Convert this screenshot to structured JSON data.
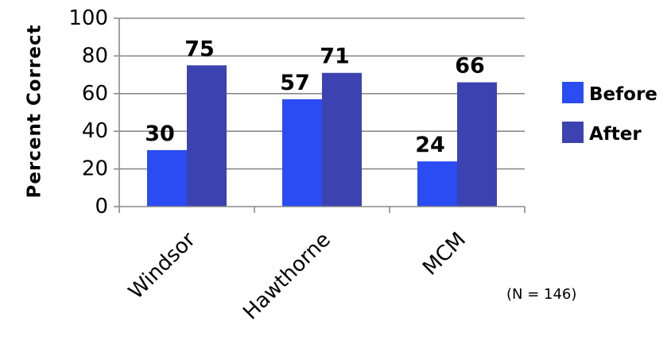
{
  "chart_data": {
    "type": "bar",
    "categories": [
      "Windsor",
      "Hawthorne",
      "MCM"
    ],
    "series": [
      {
        "name": "Before",
        "values": [
          30,
          57,
          24
        ],
        "color": "#2a4cf2"
      },
      {
        "name": "After",
        "values": [
          75,
          71,
          66
        ],
        "color": "#3c42b0"
      }
    ],
    "ylabel": "Percent Correct",
    "ylim": [
      0,
      100
    ],
    "yticks": [
      0,
      20,
      40,
      60,
      80,
      100
    ],
    "grid": true,
    "legend_position": "right",
    "data_labels": true,
    "annotation": "(N = 146)"
  }
}
